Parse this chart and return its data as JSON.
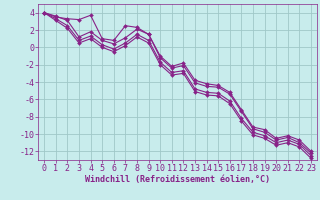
{
  "background_color": "#c8ecec",
  "grid_color": "#a0c8c8",
  "line_color": "#882288",
  "marker_color": "#882288",
  "xlabel": "Windchill (Refroidissement éolien,°C)",
  "xlabel_fontsize": 6.0,
  "tick_fontsize": 6.0,
  "ylabel_ticks": [
    4,
    2,
    0,
    -2,
    -4,
    -6,
    -8,
    -10,
    -12
  ],
  "xlim": [
    -0.5,
    23.5
  ],
  "ylim": [
    -13.0,
    5.0
  ],
  "line1_x": [
    0,
    1,
    2,
    3,
    4,
    5,
    6,
    7,
    8,
    9,
    10,
    11,
    12,
    13,
    14,
    15,
    16,
    17,
    18,
    19,
    20,
    21,
    22,
    23
  ],
  "line1_y": [
    4.0,
    3.5,
    3.3,
    3.2,
    3.7,
    1.0,
    0.8,
    2.5,
    2.3,
    1.5,
    -1.0,
    -2.2,
    -1.8,
    -3.8,
    -4.2,
    -4.4,
    -5.2,
    -7.2,
    -9.2,
    -9.5,
    -10.5,
    -10.2,
    -10.7,
    -12.0
  ],
  "line2_x": [
    0,
    1,
    2,
    3,
    4,
    5,
    6,
    7,
    8,
    9,
    10,
    11,
    12,
    13,
    14,
    15,
    16,
    17,
    18,
    19,
    20,
    21,
    22,
    23
  ],
  "line2_y": [
    4.0,
    3.6,
    3.1,
    1.2,
    1.8,
    0.8,
    0.4,
    1.1,
    2.1,
    1.5,
    -1.2,
    -2.4,
    -2.1,
    -4.1,
    -4.5,
    -4.6,
    -5.4,
    -7.4,
    -9.4,
    -9.8,
    -10.7,
    -10.4,
    -11.0,
    -12.2
  ],
  "line3_x": [
    0,
    1,
    2,
    3,
    4,
    5,
    6,
    7,
    8,
    9,
    10,
    11,
    12,
    13,
    14,
    15,
    16,
    17,
    18,
    19,
    20,
    21,
    22,
    23
  ],
  "line3_y": [
    4.0,
    3.3,
    2.5,
    0.8,
    1.3,
    0.3,
    -0.2,
    0.5,
    1.5,
    0.8,
    -1.7,
    -2.9,
    -2.7,
    -4.8,
    -5.2,
    -5.3,
    -6.2,
    -8.2,
    -9.8,
    -10.2,
    -11.0,
    -10.7,
    -11.2,
    -12.5
  ],
  "line4_x": [
    0,
    1,
    2,
    3,
    4,
    5,
    6,
    7,
    8,
    9,
    10,
    11,
    12,
    13,
    14,
    15,
    16,
    17,
    18,
    19,
    20,
    21,
    22,
    23
  ],
  "line4_y": [
    4.0,
    3.1,
    2.2,
    0.5,
    1.0,
    0.0,
    -0.5,
    0.2,
    1.2,
    0.5,
    -2.0,
    -3.2,
    -3.0,
    -5.1,
    -5.5,
    -5.6,
    -6.5,
    -8.5,
    -10.1,
    -10.5,
    -11.3,
    -11.0,
    -11.5,
    -12.8
  ]
}
